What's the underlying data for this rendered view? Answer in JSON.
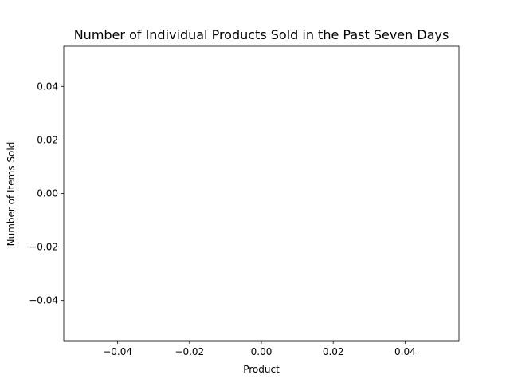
{
  "chart_data": {
    "type": "bar",
    "title": "Number of Individual Products Sold in the Past Seven Days",
    "xlabel": "Product",
    "ylabel": "Number of Items Sold",
    "categories": [],
    "values": [],
    "xlim": [
      -0.055,
      0.055
    ],
    "ylim": [
      -0.055,
      0.055
    ],
    "x_ticks": [
      -0.04,
      -0.02,
      0.0,
      0.02,
      0.04
    ],
    "x_tick_labels": [
      "−0.04",
      "−0.02",
      "0.00",
      "0.02",
      "0.04"
    ],
    "y_ticks": [
      -0.04,
      -0.02,
      0.0,
      0.02,
      0.04
    ],
    "y_tick_labels": [
      "−0.04",
      "−0.02",
      "0.00",
      "0.02",
      "0.04"
    ],
    "grid": false,
    "legend": "none"
  }
}
